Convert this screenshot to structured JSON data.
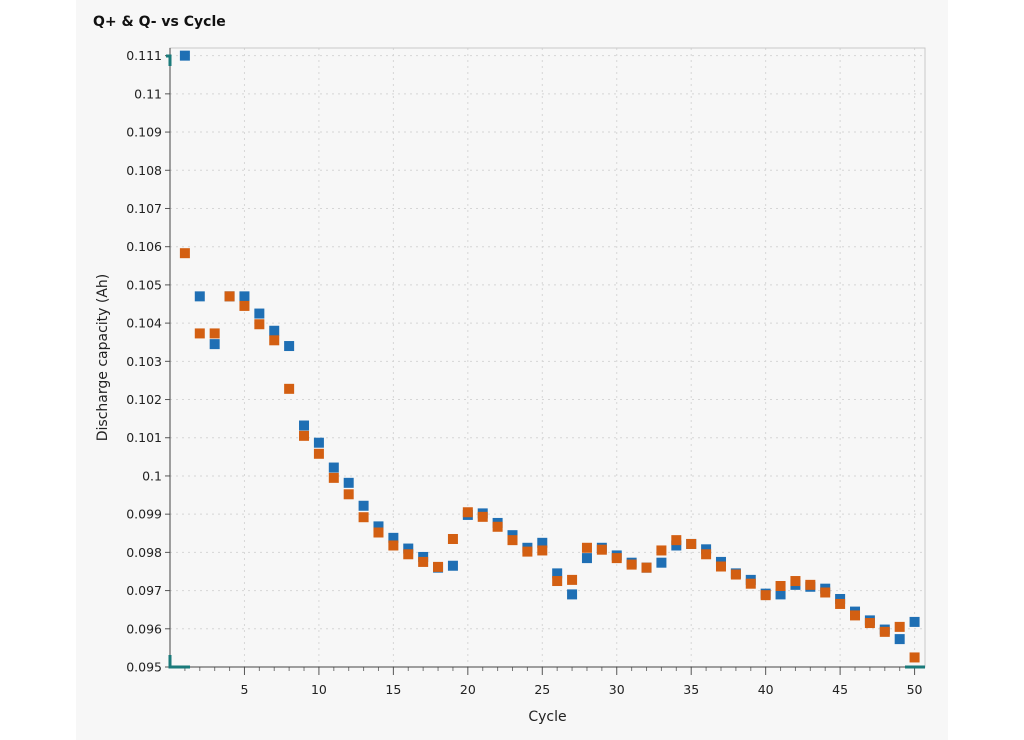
{
  "chart_data": {
    "type": "scatter",
    "title": "Q+ & Q- vs Cycle",
    "xlabel": "Cycle",
    "ylabel": "Discharge capacity (Ah)",
    "xlim": [
      0,
      50.7
    ],
    "ylim": [
      0.095,
      0.1112
    ],
    "xticks": [
      5,
      10,
      15,
      20,
      25,
      30,
      35,
      40,
      45,
      50
    ],
    "yticks": [
      0.095,
      0.096,
      0.097,
      0.098,
      0.099,
      0.1,
      0.101,
      0.102,
      0.103,
      0.104,
      0.105,
      0.106,
      0.107,
      0.108,
      0.109,
      0.11,
      0.111
    ],
    "ytick_labels": [
      "0.095",
      "0.096",
      "0.097",
      "0.098",
      "0.099",
      "0.1",
      "0.101",
      "0.102",
      "0.103",
      "0.104",
      "0.105",
      "0.106",
      "0.107",
      "0.108",
      "0.109",
      "0.11",
      "0.111"
    ],
    "grid": true,
    "series": [
      {
        "color": "#1f6fb4",
        "x": [
          1,
          2,
          3,
          4,
          5,
          6,
          7,
          8,
          9,
          10,
          11,
          12,
          13,
          14,
          15,
          16,
          17,
          18,
          19,
          20,
          21,
          22,
          23,
          24,
          25,
          26,
          27,
          28,
          29,
          30,
          31,
          32,
          33,
          34,
          35,
          36,
          37,
          38,
          39,
          40,
          41,
          42,
          43,
          44,
          45,
          46,
          47,
          48,
          49,
          50
        ],
        "y": [
          0.111,
          0.1047,
          0.10345,
          0.1047,
          0.1047,
          0.10425,
          0.1038,
          0.1034,
          0.10132,
          0.10087,
          0.10022,
          0.09982,
          0.09922,
          0.09868,
          0.09838,
          0.0981,
          0.09788,
          0.0976,
          0.09765,
          0.09898,
          0.09902,
          0.09877,
          0.09845,
          0.09812,
          0.09825,
          0.09745,
          0.0969,
          0.09785,
          0.09812,
          0.09792,
          0.09773,
          0.0976,
          0.09773,
          0.09818,
          0.09822,
          0.09808,
          0.09775,
          0.09745,
          0.09728,
          0.09692,
          0.0969,
          0.09715,
          0.0971,
          0.09705,
          0.09678,
          0.09645,
          0.09622,
          0.09598,
          0.09573,
          0.09618
        ]
      },
      {
        "color": "#d35f12",
        "x": [
          1,
          2,
          3,
          4,
          5,
          6,
          7,
          8,
          9,
          10,
          11,
          12,
          13,
          14,
          15,
          16,
          17,
          18,
          19,
          20,
          21,
          22,
          23,
          24,
          25,
          26,
          27,
          28,
          29,
          30,
          31,
          32,
          33,
          34,
          35,
          36,
          37,
          38,
          39,
          40,
          41,
          42,
          43,
          44,
          45,
          46,
          47,
          48,
          49,
          50
        ],
        "y": [
          0.10583,
          0.10373,
          0.10373,
          0.1047,
          0.10445,
          0.10397,
          0.10355,
          0.10228,
          0.10105,
          0.10058,
          0.09995,
          0.09952,
          0.09892,
          0.09852,
          0.09818,
          0.09795,
          0.09775,
          0.09762,
          0.09835,
          0.09905,
          0.09893,
          0.09867,
          0.09832,
          0.09802,
          0.09805,
          0.09725,
          0.09728,
          0.09812,
          0.09807,
          0.09785,
          0.09768,
          0.0976,
          0.09805,
          0.09832,
          0.09822,
          0.09795,
          0.09763,
          0.09742,
          0.09718,
          0.09688,
          0.09712,
          0.09725,
          0.09715,
          0.09695,
          0.09665,
          0.09635,
          0.09615,
          0.09592,
          0.09605,
          0.09525
        ]
      }
    ]
  }
}
